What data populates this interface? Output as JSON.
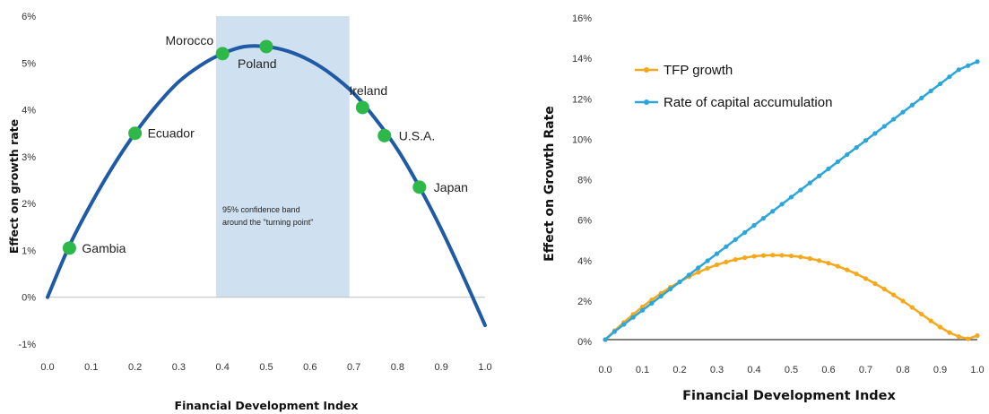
{
  "chart_data": [
    {
      "type": "line",
      "title": "",
      "xlabel": "Financial Development Index",
      "ylabel": "Effect on growth rate",
      "xlim": [
        0.0,
        1.0
      ],
      "ylim": [
        -1,
        6
      ],
      "x_ticks": [
        "0.0",
        "0.1",
        "0.2",
        "0.3",
        "0.4",
        "0.5",
        "0.6",
        "0.7",
        "0.8",
        "0.9",
        "1.0"
      ],
      "y_ticks": [
        "-1%",
        "0%",
        "1%",
        "2%",
        "3%",
        "4%",
        "5%",
        "6%"
      ],
      "colors": {
        "curve": "#1f5aa6",
        "points": "#2fb84a",
        "band": "#cfe1f1"
      },
      "curve": {
        "x": [
          0.0,
          0.05,
          0.1,
          0.15,
          0.2,
          0.25,
          0.3,
          0.35,
          0.4,
          0.45,
          0.5,
          0.55,
          0.6,
          0.65,
          0.7,
          0.75,
          0.8,
          0.85,
          0.9,
          0.95,
          1.0
        ],
        "y": [
          0.0,
          1.1,
          2.0,
          2.8,
          3.5,
          4.1,
          4.6,
          4.95,
          5.2,
          5.35,
          5.35,
          5.25,
          5.05,
          4.75,
          4.35,
          3.8,
          3.15,
          2.35,
          1.45,
          0.45,
          -0.6
        ]
      },
      "points": [
        {
          "label": "Gambia",
          "x": 0.05,
          "y": 1.05
        },
        {
          "label": "Ecuador",
          "x": 0.2,
          "y": 3.5
        },
        {
          "label": "Morocco",
          "x": 0.4,
          "y": 5.2
        },
        {
          "label": "Poland",
          "x": 0.5,
          "y": 5.35
        },
        {
          "label": "Ireland",
          "x": 0.72,
          "y": 4.05
        },
        {
          "label": "U.S.A.",
          "x": 0.77,
          "y": 3.45
        },
        {
          "label": "Japan",
          "x": 0.85,
          "y": 2.35
        }
      ],
      "band": {
        "x_from": 0.385,
        "x_to": 0.69,
        "label_line1": "95%  confidence band",
        "label_line2": "around the \"turning point\""
      }
    },
    {
      "type": "line",
      "title": "",
      "xlabel": "Financial Development Index",
      "ylabel": "Effect on Growth Rate",
      "xlim": [
        0.0,
        1.0
      ],
      "ylim": [
        0,
        16
      ],
      "x_ticks": [
        "0.0",
        "0.1",
        "0.2",
        "0.3",
        "0.4",
        "0.5",
        "0.6",
        "0.7",
        "0.8",
        "0.9",
        "1.0"
      ],
      "y_ticks": [
        "0%",
        "2%",
        "4%",
        "6%",
        "8%",
        "10%",
        "12%",
        "14%",
        "16%"
      ],
      "legend_position": "top-left",
      "series": [
        {
          "name": "TFP growth",
          "color": "#f5a81c",
          "x": [
            0.0,
            0.025,
            0.05,
            0.075,
            0.1,
            0.125,
            0.15,
            0.175,
            0.2,
            0.225,
            0.25,
            0.275,
            0.3,
            0.325,
            0.35,
            0.375,
            0.4,
            0.425,
            0.45,
            0.475,
            0.5,
            0.525,
            0.55,
            0.575,
            0.6,
            0.625,
            0.65,
            0.675,
            0.7,
            0.725,
            0.75,
            0.775,
            0.8,
            0.825,
            0.85,
            0.875,
            0.9,
            0.925,
            0.95,
            0.975,
            1.0
          ],
          "y": [
            0.0,
            0.44,
            0.85,
            1.25,
            1.62,
            1.97,
            2.29,
            2.59,
            2.86,
            3.11,
            3.33,
            3.53,
            3.7,
            3.84,
            3.96,
            4.05,
            4.12,
            4.16,
            4.18,
            4.17,
            4.14,
            4.09,
            4.01,
            3.91,
            3.78,
            3.63,
            3.45,
            3.25,
            3.02,
            2.77,
            2.5,
            2.21,
            1.91,
            1.59,
            1.26,
            0.93,
            0.62,
            0.35,
            0.15,
            0.04,
            0.2
          ]
        },
        {
          "name": "Rate of capital accumulation",
          "color": "#2aa6dc",
          "x": [
            0.0,
            0.025,
            0.05,
            0.075,
            0.1,
            0.125,
            0.15,
            0.175,
            0.2,
            0.225,
            0.25,
            0.275,
            0.3,
            0.325,
            0.35,
            0.375,
            0.4,
            0.425,
            0.45,
            0.475,
            0.5,
            0.525,
            0.55,
            0.575,
            0.6,
            0.625,
            0.65,
            0.675,
            0.7,
            0.725,
            0.75,
            0.775,
            0.8,
            0.825,
            0.85,
            0.875,
            0.9,
            0.925,
            0.95,
            0.975,
            1.0
          ],
          "y": [
            0.0,
            0.4,
            0.75,
            1.1,
            1.45,
            1.8,
            2.15,
            2.5,
            2.85,
            3.2,
            3.55,
            3.9,
            4.25,
            4.6,
            4.95,
            5.3,
            5.65,
            6.0,
            6.35,
            6.7,
            7.05,
            7.4,
            7.75,
            8.1,
            8.45,
            8.8,
            9.15,
            9.5,
            9.85,
            10.2,
            10.55,
            10.9,
            11.25,
            11.6,
            11.95,
            12.3,
            12.65,
            13.0,
            13.35,
            13.55,
            13.75
          ]
        }
      ]
    }
  ]
}
